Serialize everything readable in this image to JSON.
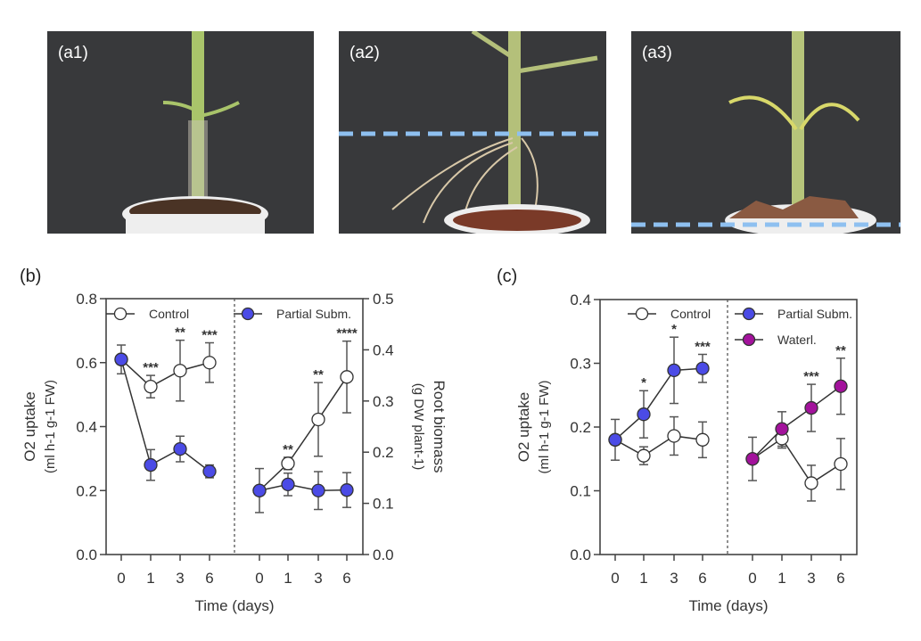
{
  "photos": [
    {
      "label": "(a1)"
    },
    {
      "label": "(a2)"
    },
    {
      "label": "(a3)"
    }
  ],
  "colors": {
    "control": "#ffffff",
    "partial": "#4b4be6",
    "waterl": "#a3129c",
    "waterline": "#8ec0f0"
  },
  "chart_data": [
    {
      "panel": "(b)",
      "type": "line",
      "xlabel": "Time (days)",
      "ylabel_left": [
        "O2 uptake",
        "(ml h-1 g-1 FW)"
      ],
      "ylabel_right": [
        "Root biomass",
        "(g DW plant-1)"
      ],
      "x_ticks": [
        "0",
        "1",
        "3",
        "6"
      ],
      "ylim_left": [
        0,
        0.8
      ],
      "yticks_left": [
        "0.0",
        "0.2",
        "0.4",
        "0.6",
        "0.8"
      ],
      "ylim_right": [
        0,
        0.5
      ],
      "yticks_right": [
        "0.0",
        "0.1",
        "0.2",
        "0.3",
        "0.4",
        "0.5"
      ],
      "legend": [
        {
          "name": "Control",
          "color": "control"
        },
        {
          "name": "Partial Subm.",
          "color": "partial"
        }
      ],
      "groups": [
        {
          "axis": "left",
          "series": [
            {
              "name": "Control",
              "color": "control",
              "y": [
                0.61,
                0.525,
                0.575,
                0.6
              ],
              "err": [
                0.045,
                0.035,
                0.095,
                0.062
              ]
            },
            {
              "name": "Partial Subm.",
              "color": "partial",
              "y": [
                0.61,
                0.28,
                0.33,
                0.26
              ],
              "err": [
                0,
                0.048,
                0.04,
                0.02
              ]
            }
          ],
          "sig": [
            "",
            "***",
            "**",
            "***"
          ]
        },
        {
          "axis": "right",
          "series": [
            {
              "name": "Control",
              "color": "control",
              "y": [
                0.125,
                0.178,
                0.264,
                0.347
              ],
              "err": [
                0.043,
                0.012,
                0.072,
                0.07
              ]
            },
            {
              "name": "Partial Subm.",
              "color": "partial",
              "y": [
                0.125,
                0.137,
                0.125,
                0.126
              ],
              "err": [
                0,
                0.022,
                0.037,
                0.034
              ]
            }
          ],
          "sig": [
            "",
            "**",
            "**",
            "****"
          ]
        }
      ]
    },
    {
      "panel": "(c)",
      "type": "line",
      "xlabel": "Time (days)",
      "ylabel_left": [
        "O2 uptake",
        "(ml h-1 g-1 FW)"
      ],
      "x_ticks": [
        "0",
        "1",
        "3",
        "6"
      ],
      "ylim_left": [
        0,
        0.4
      ],
      "yticks_left": [
        "0.0",
        "0.1",
        "0.2",
        "0.3",
        "0.4"
      ],
      "legend": [
        {
          "name": "Control",
          "color": "control"
        },
        {
          "name": "Partial Subm.",
          "color": "partial"
        },
        {
          "name": "Waterl.",
          "color": "waterl"
        }
      ],
      "groups": [
        {
          "axis": "left",
          "series": [
            {
              "name": "Control",
              "color": "control",
              "y": [
                0.18,
                0.155,
                0.186,
                0.18
              ],
              "err": [
                0.032,
                0.014,
                0.03,
                0.028
              ]
            },
            {
              "name": "Partial Subm.",
              "color": "partial",
              "y": [
                0.18,
                0.22,
                0.289,
                0.292
              ],
              "err": [
                0,
                0.037,
                0.052,
                0.022
              ]
            }
          ],
          "sig": [
            "",
            "*",
            "*",
            "***"
          ]
        },
        {
          "axis": "left",
          "series": [
            {
              "name": "Control",
              "color": "control",
              "y": [
                0.15,
                0.182,
                0.112,
                0.142
              ],
              "err": [
                0.034,
                0.015,
                0.028,
                0.04
              ]
            },
            {
              "name": "Waterl.",
              "color": "waterl",
              "y": [
                0.15,
                0.197,
                0.23,
                0.264
              ],
              "err": [
                0,
                0.027,
                0.037,
                0.044
              ]
            }
          ],
          "sig": [
            "",
            "",
            "***",
            "**"
          ]
        }
      ]
    }
  ]
}
